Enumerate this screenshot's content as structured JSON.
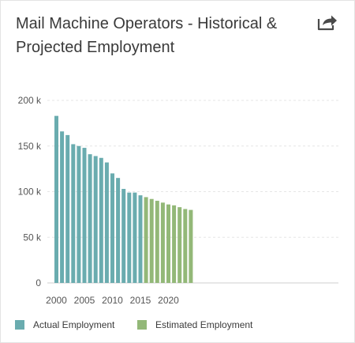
{
  "header": {
    "title_line1": "Mail Machine Operators - Historical &",
    "title_line2": "Projected Employment",
    "share_icon": "share-icon"
  },
  "colors": {
    "actual": "#6aacaf",
    "estimated": "#93b878",
    "grid": "#e6e6e6",
    "axis_text": "#555555"
  },
  "chart_data": {
    "type": "bar",
    "title": "Mail Machine Operators - Historical & Projected Employment",
    "xlabel": "",
    "ylabel": "",
    "x": [
      2000,
      2001,
      2002,
      2003,
      2004,
      2005,
      2006,
      2007,
      2008,
      2009,
      2010,
      2011,
      2012,
      2013,
      2014,
      2015,
      2016,
      2017,
      2018,
      2019,
      2020,
      2021,
      2022,
      2023,
      2024
    ],
    "xlim": [
      2000,
      2024
    ],
    "ylim": [
      0,
      200000
    ],
    "yticks": [
      0,
      50000,
      100000,
      150000,
      200000
    ],
    "ytick_labels": [
      "0",
      "50 k",
      "100 k",
      "150 k",
      "200 k"
    ],
    "xticks": [
      2000,
      2005,
      2010,
      2015,
      2020
    ],
    "xtick_labels": [
      "2000",
      "2005",
      "2010",
      "2015",
      "2020"
    ],
    "grid": true,
    "legend_position": "bottom-left",
    "series": [
      {
        "name": "Actual Employment",
        "color": "#6aacaf",
        "values": [
          183000,
          166000,
          162000,
          152000,
          150000,
          148000,
          141000,
          139000,
          137000,
          132000,
          120000,
          115000,
          103000,
          99000,
          99000,
          96000,
          null,
          null,
          null,
          null,
          null,
          null,
          null,
          null,
          null
        ]
      },
      {
        "name": "Estimated Employment",
        "color": "#93b878",
        "values": [
          null,
          null,
          null,
          null,
          null,
          null,
          null,
          null,
          null,
          null,
          null,
          null,
          null,
          null,
          null,
          null,
          94000,
          92000,
          90000,
          88000,
          86000,
          85000,
          83000,
          81000,
          80000
        ]
      }
    ]
  }
}
